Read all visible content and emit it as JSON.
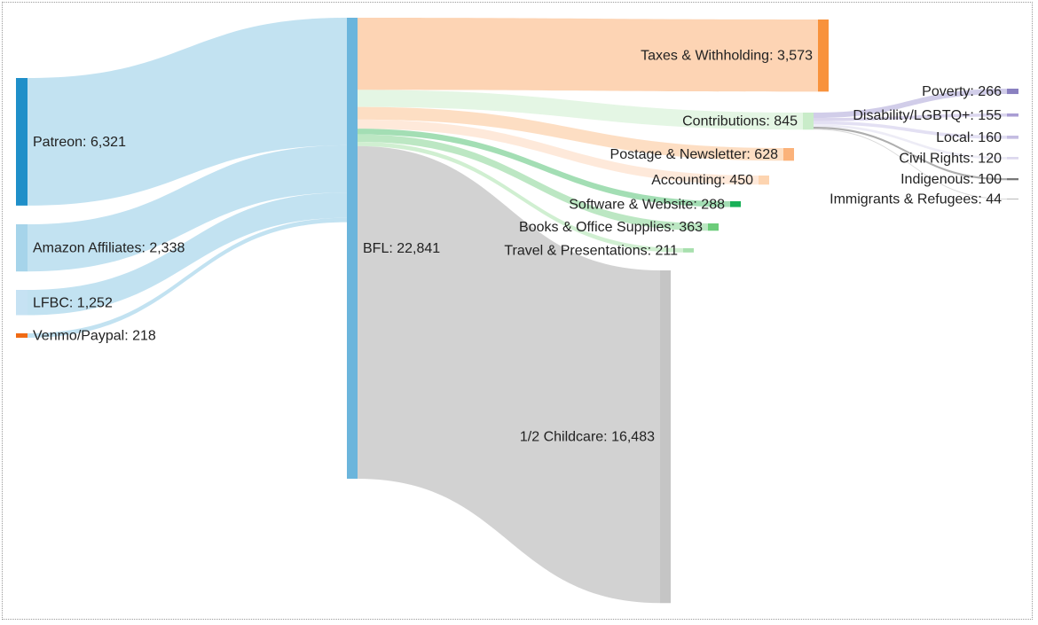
{
  "chart_data": {
    "type": "sankey",
    "nodes": [
      {
        "id": "patreon",
        "name": "Patreon",
        "value": 6321,
        "color": "#1f8fc9"
      },
      {
        "id": "amazon",
        "name": "Amazon Affiliates",
        "value": 2338,
        "color": "#a6d4ea"
      },
      {
        "id": "lfbc",
        "name": "LFBC",
        "value": 1252,
        "color": "#c6e2f3"
      },
      {
        "id": "venmo",
        "name": "Venmo/Paypal",
        "value": 218,
        "color": "#f06a14"
      },
      {
        "id": "bfl",
        "name": "BFL",
        "value": 22841,
        "color": "#6bb5dc"
      },
      {
        "id": "taxes",
        "name": "Taxes & Withholding",
        "value": 3573,
        "color": "#f8923c"
      },
      {
        "id": "contrib",
        "name": "Contributions",
        "value": 845,
        "color": "#c9ecc9"
      },
      {
        "id": "postage",
        "name": "Postage & Newsletter",
        "value": 628,
        "color": "#fbb27a"
      },
      {
        "id": "accounting",
        "name": "Accounting",
        "value": 450,
        "color": "#fdd4b0"
      },
      {
        "id": "software",
        "name": "Software & Website",
        "value": 288,
        "color": "#19b058"
      },
      {
        "id": "books",
        "name": "Books & Office Supplies",
        "value": 363,
        "color": "#6ccc7a"
      },
      {
        "id": "travel",
        "name": "Travel & Presentations",
        "value": 211,
        "color": "#a8e0ae"
      },
      {
        "id": "childcare",
        "name": "1/2 Childcare",
        "value": 16483,
        "color": "#c5c5c5"
      },
      {
        "id": "poverty",
        "name": "Poverty",
        "value": 266,
        "color": "#8a80c0"
      },
      {
        "id": "disability",
        "name": "Disability/LGBTQ+",
        "value": 155,
        "color": "#a99dd4"
      },
      {
        "id": "local",
        "name": "Local",
        "value": 160,
        "color": "#c4bce2"
      },
      {
        "id": "civil",
        "name": "Civil Rights",
        "value": 120,
        "color": "#dcd8ee"
      },
      {
        "id": "indigenous",
        "name": "Indigenous",
        "value": 100,
        "color": "#777777"
      },
      {
        "id": "immigrants",
        "name": "Immigrants & Refugees",
        "value": 44,
        "color": "#bbbbbb"
      }
    ],
    "links": [
      {
        "source": "patreon",
        "target": "bfl",
        "value": 6321,
        "color": "#bfe0f0"
      },
      {
        "source": "amazon",
        "target": "bfl",
        "value": 2338,
        "color": "#bfe0f0"
      },
      {
        "source": "lfbc",
        "target": "bfl",
        "value": 1252,
        "color": "#bfe0f0"
      },
      {
        "source": "venmo",
        "target": "bfl",
        "value": 218,
        "color": "#bfe0f0"
      },
      {
        "source": "bfl",
        "target": "taxes",
        "value": 3573,
        "color": "#fdd2b0"
      },
      {
        "source": "bfl",
        "target": "contrib",
        "value": 845,
        "color": "#e3f5e3"
      },
      {
        "source": "bfl",
        "target": "postage",
        "value": 628,
        "color": "#fddcc0"
      },
      {
        "source": "bfl",
        "target": "accounting",
        "value": 450,
        "color": "#fee8d8"
      },
      {
        "source": "bfl",
        "target": "software",
        "value": 288,
        "color": "#9edcb0"
      },
      {
        "source": "bfl",
        "target": "books",
        "value": 363,
        "color": "#b8e6c0"
      },
      {
        "source": "bfl",
        "target": "travel",
        "value": 211,
        "color": "#cdeecf"
      },
      {
        "source": "bfl",
        "target": "childcare",
        "value": 16483,
        "color": "#d0d0d0"
      },
      {
        "source": "contrib",
        "target": "poverty",
        "value": 266,
        "color": "#cfcae8"
      },
      {
        "source": "contrib",
        "target": "disability",
        "value": 155,
        "color": "#d8d3ec"
      },
      {
        "source": "contrib",
        "target": "local",
        "value": 160,
        "color": "#e2def2"
      },
      {
        "source": "contrib",
        "target": "civil",
        "value": 120,
        "color": "#ecebf6"
      },
      {
        "source": "contrib",
        "target": "indigenous",
        "value": 100,
        "color": "#aaaaaa"
      },
      {
        "source": "contrib",
        "target": "immigrants",
        "value": 44,
        "color": "#d6d6d6"
      }
    ]
  }
}
